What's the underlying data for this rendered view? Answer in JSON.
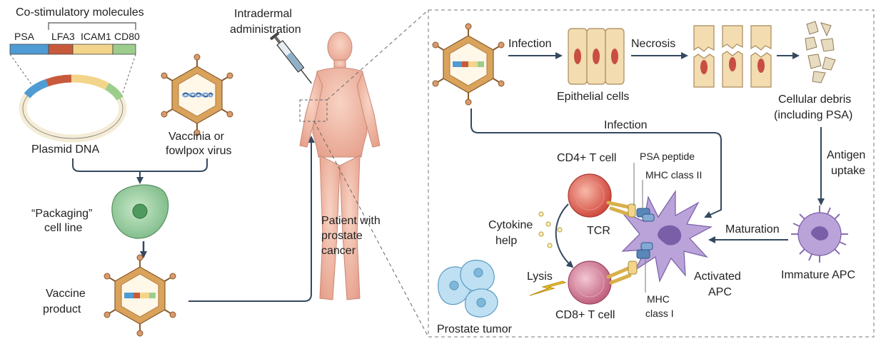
{
  "labels": {
    "costim_title": "Co-stimulatory molecules",
    "psa": "PSA",
    "lfa3": "LFA3",
    "icam1": "ICAM1",
    "cd80": "CD80",
    "plasmid": "Plasmid DNA",
    "vaccinia_1": "Vaccinia or",
    "vaccinia_2": "fowlpox virus",
    "packaging_1": "“Packaging”",
    "packaging_2": "cell line",
    "vaccine_1": "Vaccine",
    "vaccine_2": "product",
    "intradermal_1": "Intradermal",
    "intradermal_2": "administration",
    "patient_1": "Patient with",
    "patient_2": "prostate",
    "patient_3": "cancer",
    "infection_top": "Infection",
    "necrosis": "Necrosis",
    "epithelial": "Epithelial cells",
    "debris_1": "Cellular debris",
    "debris_2": "(including PSA)",
    "infection_mid": "Infection",
    "antigen_1": "Antigen",
    "antigen_2": "uptake",
    "cd4": "CD4+ T cell",
    "psa_peptide": "PSA peptide",
    "mhc2": "MHC class II",
    "cytokine_1": "Cytokine",
    "cytokine_2": "help",
    "tcr": "TCR",
    "maturation": "Maturation",
    "lysis": "Lysis",
    "activated_1": "Activated",
    "activated_2": "APC",
    "immature": "Immature APC",
    "mhc1_1": "MHC",
    "mhc1_2": "class I",
    "cd8": "CD8+ T cell",
    "prostate_tumor": "Prostate tumor"
  },
  "colors": {
    "psa": "#4f9bd3",
    "lfa3": "#c85a3c",
    "icam1": "#f2d58a",
    "cd80": "#9ccd8c",
    "virus_shell": "#d9a35c",
    "packaging_cell": "#8fc89a",
    "apc": "#a98cc9",
    "tcell_cd4": "#d9534f",
    "tcell_cd8": "#c76b86",
    "tumor": "#a9d3ea",
    "skin": "#f0b9a6",
    "arrow": "#34495e"
  },
  "icons": {
    "virus": "virus-icon",
    "syringe": "syringe-icon",
    "human": "human-figure-icon",
    "lightning": "lightning-icon"
  }
}
